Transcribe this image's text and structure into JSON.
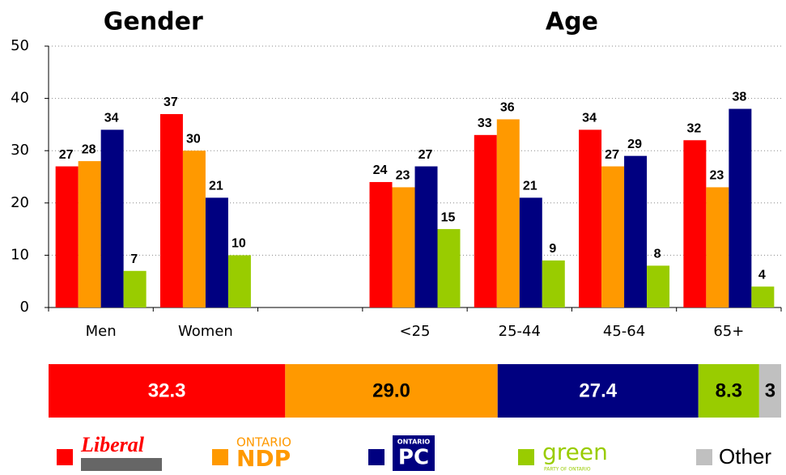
{
  "chart_data": [
    {
      "type": "bar",
      "group_titles": [
        "Gender",
        "Age"
      ],
      "categories": [
        "Men",
        "Women",
        null,
        "<25",
        "25-44",
        "45-64",
        "65+"
      ],
      "series": [
        {
          "color": "#ff0000",
          "values": [
            27,
            37,
            null,
            24,
            33,
            34,
            32
          ]
        },
        {
          "color": "#ff9900",
          "values": [
            28,
            30,
            null,
            23,
            36,
            27,
            23
          ]
        },
        {
          "color": "#000080",
          "values": [
            34,
            21,
            null,
            27,
            21,
            29,
            38
          ]
        },
        {
          "color": "#99cc00",
          "values": [
            7,
            10,
            null,
            15,
            9,
            8,
            4
          ]
        }
      ],
      "ylim": [
        0,
        50
      ],
      "yticks": [
        0,
        10,
        20,
        30,
        40,
        50
      ],
      "grid": true
    },
    {
      "type": "stacked_bar",
      "series": [
        {
          "name": "Liberal",
          "color": "#ff0000",
          "values": [
            32.3
          ],
          "value_labels": [
            "32.3"
          ]
        },
        {
          "name": "NDP",
          "prefix": "ONTARIO",
          "color": "#ff9900",
          "values": [
            29.0
          ],
          "value_labels": [
            "29.0"
          ]
        },
        {
          "name": "PC",
          "prefix": "ONTARIO",
          "color": "#000080",
          "values": [
            27.4
          ],
          "value_labels": [
            "27.4"
          ]
        },
        {
          "name": "green",
          "suffix": "PARTY OF ONTARIO",
          "color": "#99cc00",
          "values": [
            8.3
          ],
          "value_labels": [
            "8.3"
          ]
        },
        {
          "name": "Other",
          "color": "#c0c0c0",
          "values": [
            3
          ],
          "value_labels": [
            "3"
          ]
        }
      ],
      "xlim": [
        0,
        100
      ]
    }
  ]
}
